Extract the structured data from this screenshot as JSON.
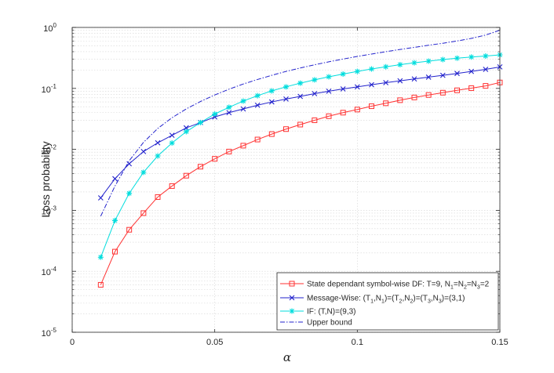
{
  "chart_data": {
    "type": "line",
    "title": "",
    "xlabel": "α",
    "ylabel": "Loss probability",
    "xlim": [
      0,
      0.15
    ],
    "ylim": [
      1e-05,
      1
    ],
    "yscale": "log",
    "grid": true,
    "legend_position": "bottom-right",
    "x_ticks": [
      {
        "value": 0,
        "label": "0"
      },
      {
        "value": 0.05,
        "label": "0.05"
      },
      {
        "value": 0.1,
        "label": "0.1"
      },
      {
        "value": 0.15,
        "label": "0.15"
      }
    ],
    "y_ticks": [
      {
        "value": 1e-05,
        "base": "10",
        "exp": "-5"
      },
      {
        "value": 0.0001,
        "base": "10",
        "exp": "-4"
      },
      {
        "value": 0.001,
        "base": "10",
        "exp": "-3"
      },
      {
        "value": 0.01,
        "base": "10",
        "exp": "-2"
      },
      {
        "value": 0.1,
        "base": "10",
        "exp": "-1"
      },
      {
        "value": 1,
        "base": "10",
        "exp": "0"
      }
    ],
    "x": [
      0.01,
      0.015,
      0.02,
      0.025,
      0.03,
      0.035,
      0.04,
      0.045,
      0.05,
      0.055,
      0.06,
      0.065,
      0.07,
      0.075,
      0.08,
      0.085,
      0.09,
      0.095,
      0.1,
      0.105,
      0.11,
      0.115,
      0.12,
      0.125,
      0.13,
      0.135,
      0.14,
      0.145,
      0.15
    ],
    "series": [
      {
        "key": "sdf",
        "color": "#ff3333",
        "marker": "square",
        "legend_parts": [
          {
            "t": "State dependant symbol-wise DF: T=9, N"
          },
          {
            "t": "1",
            "sub": true
          },
          {
            "t": "=N"
          },
          {
            "t": "2",
            "sub": true
          },
          {
            "t": "=N"
          },
          {
            "t": "3",
            "sub": true
          },
          {
            "t": "=2"
          }
        ],
        "values": [
          6e-05,
          0.00021,
          0.00048,
          0.0009,
          0.00165,
          0.0025,
          0.0037,
          0.0052,
          0.007,
          0.0092,
          0.0115,
          0.0145,
          0.0178,
          0.0215,
          0.0255,
          0.03,
          0.035,
          0.04,
          0.045,
          0.051,
          0.057,
          0.064,
          0.071,
          0.078,
          0.085,
          0.093,
          0.101,
          0.11,
          0.125
        ]
      },
      {
        "key": "mw",
        "color": "#2222cc",
        "marker": "x",
        "legend_parts": [
          {
            "t": "Message-Wise: (T"
          },
          {
            "t": "1",
            "sub": true
          },
          {
            "t": ",N"
          },
          {
            "t": "1",
            "sub": true
          },
          {
            "t": ")=(T"
          },
          {
            "t": "2",
            "sub": true
          },
          {
            "t": ",N"
          },
          {
            "t": "2",
            "sub": true
          },
          {
            "t": ")=(T"
          },
          {
            "t": "3",
            "sub": true
          },
          {
            "t": ",N"
          },
          {
            "t": "3",
            "sub": true
          },
          {
            "t": ")=(3,1)"
          }
        ],
        "values": [
          0.0016,
          0.0033,
          0.0058,
          0.0092,
          0.0128,
          0.017,
          0.0225,
          0.0275,
          0.034,
          0.04,
          0.046,
          0.053,
          0.06,
          0.067,
          0.074,
          0.082,
          0.09,
          0.098,
          0.106,
          0.115,
          0.124,
          0.133,
          0.143,
          0.153,
          0.164,
          0.176,
          0.19,
          0.205,
          0.225
        ]
      },
      {
        "key": "if",
        "color": "#00dddd",
        "marker": "asterisk",
        "legend_parts": [
          {
            "t": "IF: (T,N)=(9,3)"
          }
        ],
        "values": [
          0.00017,
          0.00068,
          0.0019,
          0.0042,
          0.0078,
          0.0127,
          0.0195,
          0.0275,
          0.038,
          0.049,
          0.062,
          0.076,
          0.091,
          0.106,
          0.122,
          0.138,
          0.155,
          0.172,
          0.19,
          0.208,
          0.226,
          0.245,
          0.263,
          0.28,
          0.297,
          0.313,
          0.327,
          0.34,
          0.355
        ]
      },
      {
        "key": "ub",
        "color": "#2222cc",
        "marker": "none",
        "dash": true,
        "legend_parts": [
          {
            "t": "Upper bound"
          }
        ],
        "values": [
          0.0008,
          0.0025,
          0.0065,
          0.013,
          0.022,
          0.033,
          0.046,
          0.061,
          0.078,
          0.097,
          0.118,
          0.14,
          0.164,
          0.19,
          0.216,
          0.244,
          0.273,
          0.303,
          0.334,
          0.366,
          0.4,
          0.435,
          0.471,
          0.51,
          0.55,
          0.6,
          0.66,
          0.75,
          0.9
        ]
      }
    ]
  }
}
